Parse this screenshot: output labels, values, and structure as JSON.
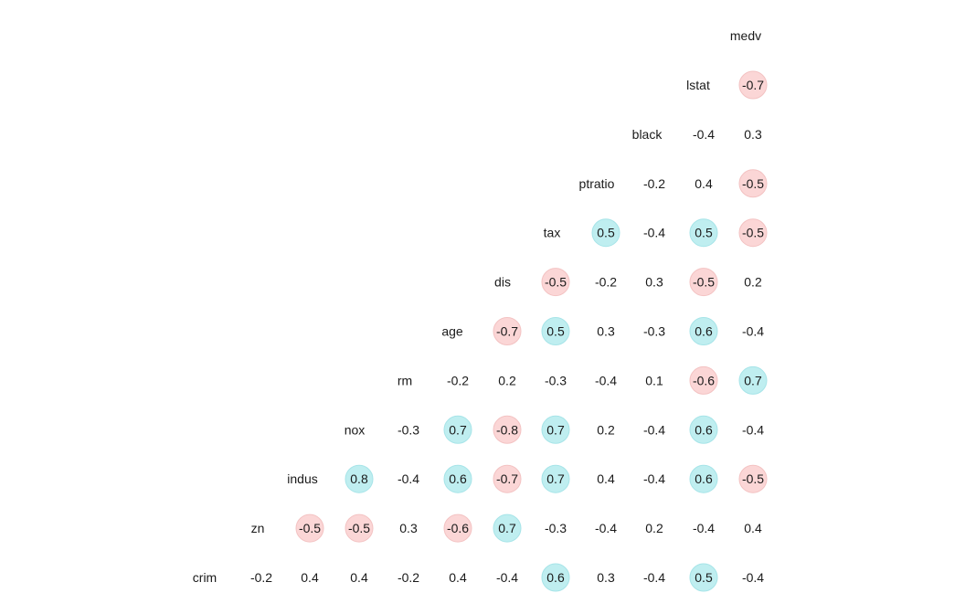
{
  "chart_data": {
    "type": "heatmap",
    "variables": [
      "crim",
      "zn",
      "indus",
      "nox",
      "rm",
      "age",
      "dis",
      "tax",
      "ptratio",
      "black",
      "lstat",
      "medv"
    ],
    "cells": [
      {
        "row": "zn",
        "col": "crim",
        "value": -0.2
      },
      {
        "row": "indus",
        "col": "crim",
        "value": 0.4
      },
      {
        "row": "nox",
        "col": "crim",
        "value": 0.4
      },
      {
        "row": "rm",
        "col": "crim",
        "value": -0.2
      },
      {
        "row": "age",
        "col": "crim",
        "value": 0.4
      },
      {
        "row": "dis",
        "col": "crim",
        "value": -0.4
      },
      {
        "row": "tax",
        "col": "crim",
        "value": 0.6
      },
      {
        "row": "ptratio",
        "col": "crim",
        "value": 0.3
      },
      {
        "row": "black",
        "col": "crim",
        "value": -0.4
      },
      {
        "row": "lstat",
        "col": "crim",
        "value": 0.5
      },
      {
        "row": "medv",
        "col": "crim",
        "value": -0.4
      },
      {
        "row": "indus",
        "col": "zn",
        "value": -0.5
      },
      {
        "row": "nox",
        "col": "zn",
        "value": -0.5
      },
      {
        "row": "rm",
        "col": "zn",
        "value": 0.3
      },
      {
        "row": "age",
        "col": "zn",
        "value": -0.6
      },
      {
        "row": "dis",
        "col": "zn",
        "value": 0.7
      },
      {
        "row": "tax",
        "col": "zn",
        "value": -0.3
      },
      {
        "row": "ptratio",
        "col": "zn",
        "value": -0.4
      },
      {
        "row": "black",
        "col": "zn",
        "value": 0.2
      },
      {
        "row": "lstat",
        "col": "zn",
        "value": -0.4
      },
      {
        "row": "medv",
        "col": "zn",
        "value": 0.4
      },
      {
        "row": "nox",
        "col": "indus",
        "value": 0.8
      },
      {
        "row": "rm",
        "col": "indus",
        "value": -0.4
      },
      {
        "row": "age",
        "col": "indus",
        "value": 0.6
      },
      {
        "row": "dis",
        "col": "indus",
        "value": -0.7
      },
      {
        "row": "tax",
        "col": "indus",
        "value": 0.7
      },
      {
        "row": "ptratio",
        "col": "indus",
        "value": 0.4
      },
      {
        "row": "black",
        "col": "indus",
        "value": -0.4
      },
      {
        "row": "lstat",
        "col": "indus",
        "value": 0.6
      },
      {
        "row": "medv",
        "col": "indus",
        "value": -0.5
      },
      {
        "row": "rm",
        "col": "nox",
        "value": -0.3
      },
      {
        "row": "age",
        "col": "nox",
        "value": 0.7
      },
      {
        "row": "dis",
        "col": "nox",
        "value": -0.8
      },
      {
        "row": "tax",
        "col": "nox",
        "value": 0.7
      },
      {
        "row": "ptratio",
        "col": "nox",
        "value": 0.2
      },
      {
        "row": "black",
        "col": "nox",
        "value": -0.4
      },
      {
        "row": "lstat",
        "col": "nox",
        "value": 0.6
      },
      {
        "row": "medv",
        "col": "nox",
        "value": -0.4
      },
      {
        "row": "age",
        "col": "rm",
        "value": -0.2
      },
      {
        "row": "dis",
        "col": "rm",
        "value": 0.2
      },
      {
        "row": "tax",
        "col": "rm",
        "value": -0.3
      },
      {
        "row": "ptratio",
        "col": "rm",
        "value": -0.4
      },
      {
        "row": "black",
        "col": "rm",
        "value": 0.1
      },
      {
        "row": "lstat",
        "col": "rm",
        "value": -0.6
      },
      {
        "row": "medv",
        "col": "rm",
        "value": 0.7
      },
      {
        "row": "dis",
        "col": "age",
        "value": -0.7
      },
      {
        "row": "tax",
        "col": "age",
        "value": 0.5
      },
      {
        "row": "ptratio",
        "col": "age",
        "value": 0.3
      },
      {
        "row": "black",
        "col": "age",
        "value": -0.3
      },
      {
        "row": "lstat",
        "col": "age",
        "value": 0.6
      },
      {
        "row": "medv",
        "col": "age",
        "value": -0.4
      },
      {
        "row": "tax",
        "col": "dis",
        "value": -0.5
      },
      {
        "row": "ptratio",
        "col": "dis",
        "value": -0.2
      },
      {
        "row": "black",
        "col": "dis",
        "value": 0.3
      },
      {
        "row": "lstat",
        "col": "dis",
        "value": -0.5
      },
      {
        "row": "medv",
        "col": "dis",
        "value": 0.2
      },
      {
        "row": "ptratio",
        "col": "tax",
        "value": 0.5
      },
      {
        "row": "black",
        "col": "tax",
        "value": -0.4
      },
      {
        "row": "lstat",
        "col": "tax",
        "value": 0.5
      },
      {
        "row": "medv",
        "col": "tax",
        "value": -0.5
      },
      {
        "row": "black",
        "col": "ptratio",
        "value": -0.2
      },
      {
        "row": "lstat",
        "col": "ptratio",
        "value": 0.4
      },
      {
        "row": "medv",
        "col": "ptratio",
        "value": -0.5
      },
      {
        "row": "lstat",
        "col": "black",
        "value": -0.4
      },
      {
        "row": "medv",
        "col": "black",
        "value": 0.3
      },
      {
        "row": "medv",
        "col": "lstat",
        "value": -0.7
      }
    ],
    "highlight_threshold": 0.5,
    "colors": {
      "positive": "#bfeef0",
      "negative": "#fbd6d6",
      "text": "#1a1a1a",
      "background": "#ffffff"
    },
    "title": "",
    "xlabel": "",
    "ylabel": "",
    "legend": "none",
    "grid": false
  }
}
